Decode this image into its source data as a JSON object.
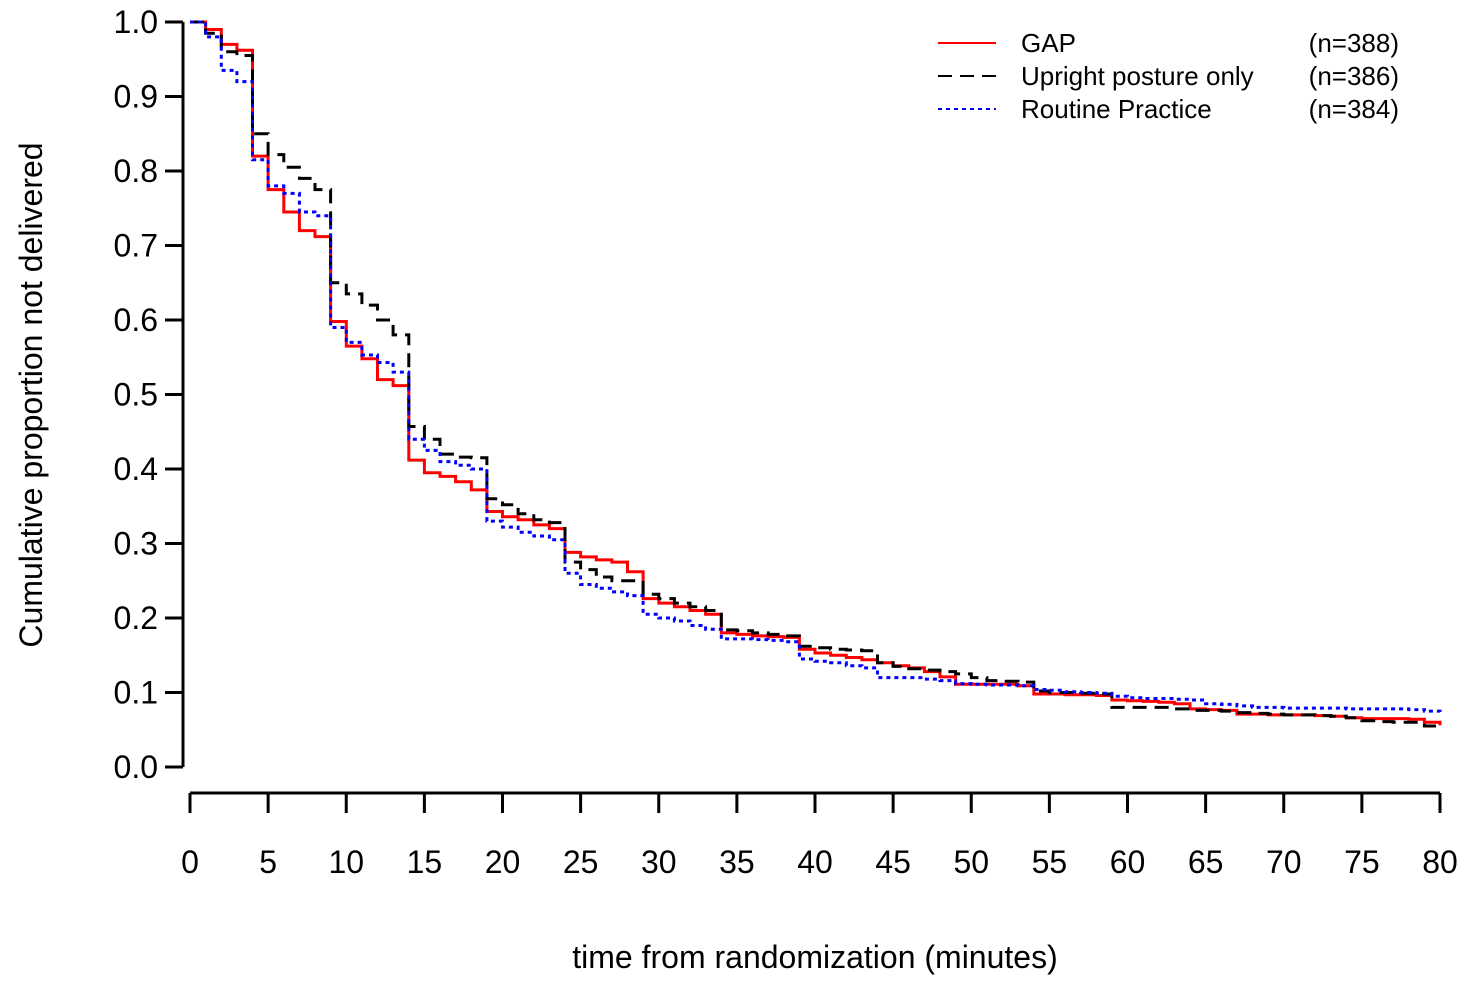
{
  "chart_data": {
    "type": "line",
    "step": true,
    "xlabel": "time from randomization (minutes)",
    "ylabel": "Cumulative proportion not delivered",
    "xlim": [
      0,
      80
    ],
    "ylim": [
      0,
      1
    ],
    "xticks": [
      "0",
      "5",
      "10",
      "15",
      "20",
      "25",
      "30",
      "35",
      "40",
      "45",
      "50",
      "55",
      "60",
      "65",
      "70",
      "75",
      "80"
    ],
    "yticks": [
      "0.0",
      "0.1",
      "0.2",
      "0.3",
      "0.4",
      "0.5",
      "0.6",
      "0.7",
      "0.8",
      "0.9",
      "1.0"
    ],
    "grid": false,
    "legend_position": "top-right",
    "series": [
      {
        "name": "GAP",
        "n_label": "(n=388)",
        "color": "#ff0000",
        "style": "solid",
        "x": [
          0,
          1,
          2,
          3,
          4,
          5,
          6,
          7,
          8,
          9,
          10,
          11,
          12,
          13,
          14,
          15,
          16,
          17,
          18,
          19,
          20,
          21,
          22,
          23,
          24,
          25,
          26,
          27,
          28,
          29,
          30,
          31,
          32,
          33,
          34,
          35,
          36,
          37,
          38,
          39,
          40,
          41,
          42,
          43,
          44,
          45,
          46,
          47,
          48,
          49,
          50,
          51,
          52,
          53,
          54,
          55,
          56,
          57,
          58,
          59,
          60,
          61,
          62,
          63,
          64,
          65,
          66,
          67,
          68,
          69,
          70,
          71,
          72,
          73,
          74,
          75,
          76,
          77,
          78,
          79,
          80
        ],
        "y": [
          1.0,
          0.99,
          0.97,
          0.962,
          0.82,
          0.775,
          0.745,
          0.72,
          0.712,
          0.598,
          0.565,
          0.548,
          0.52,
          0.512,
          0.412,
          0.395,
          0.39,
          0.383,
          0.372,
          0.343,
          0.336,
          0.332,
          0.325,
          0.32,
          0.288,
          0.282,
          0.278,
          0.275,
          0.262,
          0.226,
          0.22,
          0.215,
          0.21,
          0.205,
          0.18,
          0.178,
          0.176,
          0.175,
          0.174,
          0.158,
          0.153,
          0.15,
          0.147,
          0.144,
          0.14,
          0.136,
          0.133,
          0.128,
          0.121,
          0.111,
          0.111,
          0.111,
          0.111,
          0.109,
          0.098,
          0.098,
          0.097,
          0.097,
          0.096,
          0.09,
          0.089,
          0.088,
          0.087,
          0.085,
          0.078,
          0.077,
          0.076,
          0.071,
          0.071,
          0.07,
          0.07,
          0.07,
          0.069,
          0.068,
          0.066,
          0.065,
          0.065,
          0.065,
          0.064,
          0.06,
          0.056
        ]
      },
      {
        "name": "Upright posture only",
        "n_label": "(n=386)",
        "color": "#000000",
        "style": "dashed",
        "x": [
          0,
          1,
          2,
          3,
          4,
          5,
          6,
          7,
          8,
          9,
          10,
          11,
          12,
          13,
          14,
          15,
          16,
          17,
          18,
          19,
          20,
          21,
          22,
          23,
          24,
          25,
          26,
          27,
          28,
          29,
          30,
          31,
          32,
          33,
          34,
          35,
          36,
          37,
          38,
          39,
          40,
          41,
          42,
          43,
          44,
          45,
          46,
          47,
          48,
          49,
          50,
          51,
          52,
          53,
          54,
          55,
          56,
          57,
          58,
          59,
          60,
          61,
          62,
          63,
          64,
          65,
          66,
          67,
          68,
          69,
          70,
          71,
          72,
          73,
          74,
          75,
          76,
          77,
          78,
          79,
          80
        ],
        "y": [
          1.0,
          0.985,
          0.96,
          0.955,
          0.85,
          0.822,
          0.805,
          0.79,
          0.775,
          0.65,
          0.635,
          0.62,
          0.6,
          0.58,
          0.457,
          0.44,
          0.42,
          0.416,
          0.415,
          0.36,
          0.352,
          0.34,
          0.332,
          0.328,
          0.275,
          0.265,
          0.255,
          0.25,
          0.25,
          0.232,
          0.226,
          0.22,
          0.215,
          0.21,
          0.184,
          0.183,
          0.18,
          0.178,
          0.176,
          0.162,
          0.16,
          0.158,
          0.157,
          0.156,
          0.14,
          0.135,
          0.132,
          0.13,
          0.128,
          0.125,
          0.12,
          0.116,
          0.115,
          0.114,
          0.102,
          0.1,
          0.1,
          0.099,
          0.098,
          0.08,
          0.08,
          0.08,
          0.08,
          0.078,
          0.076,
          0.076,
          0.075,
          0.073,
          0.072,
          0.071,
          0.07,
          0.07,
          0.069,
          0.068,
          0.066,
          0.062,
          0.061,
          0.06,
          0.06,
          0.055,
          0.053
        ]
      },
      {
        "name": "Routine Practice",
        "n_label": "(n=384)",
        "color": "#0000ff",
        "style": "dotted",
        "x": [
          0,
          1,
          2,
          3,
          4,
          5,
          6,
          7,
          8,
          9,
          10,
          11,
          12,
          13,
          14,
          15,
          16,
          17,
          18,
          19,
          20,
          21,
          22,
          23,
          24,
          25,
          26,
          27,
          28,
          29,
          30,
          31,
          32,
          33,
          34,
          35,
          36,
          37,
          38,
          39,
          40,
          41,
          42,
          43,
          44,
          45,
          46,
          47,
          48,
          49,
          50,
          51,
          52,
          53,
          54,
          55,
          56,
          57,
          58,
          59,
          60,
          61,
          62,
          63,
          64,
          65,
          66,
          67,
          68,
          69,
          70,
          71,
          72,
          73,
          74,
          75,
          76,
          77,
          78,
          79,
          80
        ],
        "y": [
          1.0,
          0.98,
          0.935,
          0.92,
          0.815,
          0.78,
          0.77,
          0.745,
          0.74,
          0.59,
          0.57,
          0.553,
          0.543,
          0.53,
          0.44,
          0.425,
          0.41,
          0.405,
          0.4,
          0.33,
          0.322,
          0.315,
          0.31,
          0.305,
          0.26,
          0.245,
          0.24,
          0.235,
          0.23,
          0.205,
          0.2,
          0.196,
          0.19,
          0.185,
          0.172,
          0.172,
          0.171,
          0.17,
          0.168,
          0.145,
          0.142,
          0.14,
          0.136,
          0.133,
          0.12,
          0.12,
          0.12,
          0.118,
          0.116,
          0.112,
          0.111,
          0.11,
          0.11,
          0.109,
          0.104,
          0.103,
          0.101,
          0.1,
          0.099,
          0.095,
          0.093,
          0.092,
          0.092,
          0.091,
          0.09,
          0.085,
          0.084,
          0.082,
          0.08,
          0.08,
          0.079,
          0.079,
          0.079,
          0.079,
          0.078,
          0.078,
          0.078,
          0.078,
          0.077,
          0.075,
          0.072
        ]
      }
    ]
  }
}
